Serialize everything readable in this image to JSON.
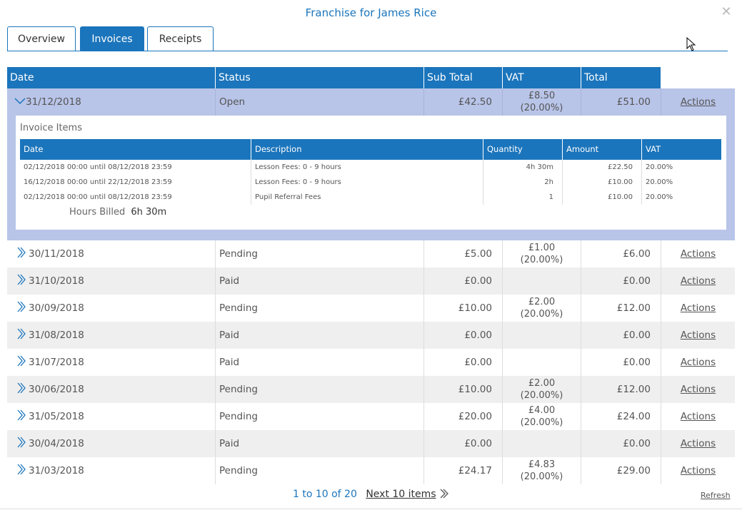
{
  "dialog": {
    "title": "Franchise for James Rice",
    "close_glyph": "✕"
  },
  "tabs": [
    {
      "label": "Overview",
      "active": false
    },
    {
      "label": "Invoices",
      "active": true
    },
    {
      "label": "Receipts",
      "active": false
    }
  ],
  "grid": {
    "headers": [
      "Date",
      "Status",
      "Sub Total",
      "VAT",
      "Total"
    ],
    "action_label": "Actions",
    "expanded": {
      "date": "31/12/2018",
      "status": "Open",
      "sub_total": "£42.50",
      "vat_amount": "£8.50",
      "vat_rate": "(20.00%)",
      "total": "£51.00",
      "items_title": "Invoice Items",
      "item_headers": [
        "Date",
        "Description",
        "Quantity",
        "Amount",
        "VAT"
      ],
      "items": [
        {
          "date": "02/12/2018 00:00 until 08/12/2018 23:59",
          "description": "Lesson Fees: 0 - 9 hours",
          "quantity": "4h 30m",
          "amount": "£22.50",
          "vat": "20.00%"
        },
        {
          "date": "16/12/2018 00:00 until 22/12/2018 23:59",
          "description": "Lesson Fees: 0 - 9 hours",
          "quantity": "2h",
          "amount": "£10.00",
          "vat": "20.00%"
        },
        {
          "date": "02/12/2018 00:00 until 08/12/2018 23:59",
          "description": "Pupil Referral Fees",
          "quantity": "1",
          "amount": "£10.00",
          "vat": "20.00%"
        }
      ],
      "hours_billed_label": "Hours Billed",
      "hours_billed_value": "6h 30m"
    },
    "rows": [
      {
        "date": "30/11/2018",
        "status": "Pending",
        "sub_total": "£5.00",
        "vat_amount": "£1.00",
        "vat_rate": "(20.00%)",
        "total": "£6.00"
      },
      {
        "date": "31/10/2018",
        "status": "Paid",
        "sub_total": "£0.00",
        "vat_amount": "",
        "vat_rate": "",
        "total": "£0.00"
      },
      {
        "date": "30/09/2018",
        "status": "Pending",
        "sub_total": "£10.00",
        "vat_amount": "£2.00",
        "vat_rate": "(20.00%)",
        "total": "£12.00"
      },
      {
        "date": "31/08/2018",
        "status": "Paid",
        "sub_total": "£0.00",
        "vat_amount": "",
        "vat_rate": "",
        "total": "£0.00"
      },
      {
        "date": "31/07/2018",
        "status": "Paid",
        "sub_total": "£0.00",
        "vat_amount": "",
        "vat_rate": "",
        "total": "£0.00"
      },
      {
        "date": "30/06/2018",
        "status": "Pending",
        "sub_total": "£10.00",
        "vat_amount": "£2.00",
        "vat_rate": "(20.00%)",
        "total": "£12.00"
      },
      {
        "date": "31/05/2018",
        "status": "Pending",
        "sub_total": "£20.00",
        "vat_amount": "£4.00",
        "vat_rate": "(20.00%)",
        "total": "£24.00"
      },
      {
        "date": "30/04/2018",
        "status": "Paid",
        "sub_total": "£0.00",
        "vat_amount": "",
        "vat_rate": "",
        "total": "£0.00"
      },
      {
        "date": "31/03/2018",
        "status": "Pending",
        "sub_total": "£24.17",
        "vat_amount": "£4.83",
        "vat_rate": "(20.00%)",
        "total": "£29.00"
      }
    ]
  },
  "pager": {
    "range": "1 to 10 of 20",
    "next": "Next 10 items",
    "refresh": "Refresh"
  },
  "colors": {
    "accent": "#1b75bc",
    "expanded_bg": "#b8c4e8",
    "stripe": "#efefef"
  }
}
